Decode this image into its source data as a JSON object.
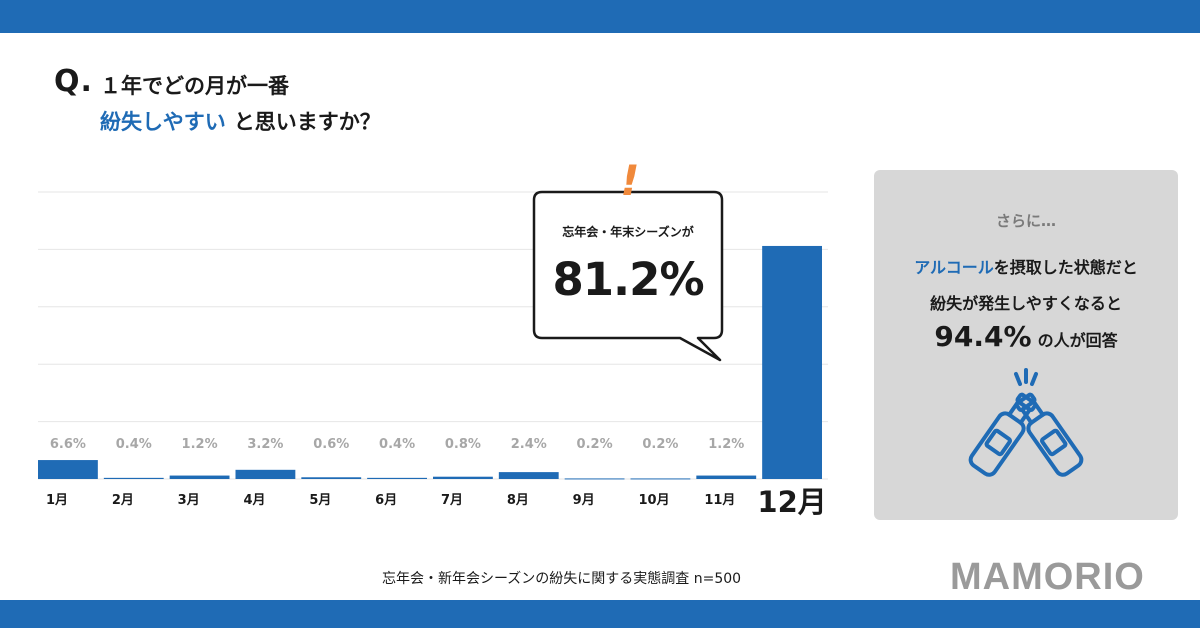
{
  "colors": {
    "brand_blue": "#1f6bb5",
    "bar": "#1f6bb5",
    "label_gray": "#a7a7a7",
    "highlight_orange": "#f0893b",
    "grid": "#e6e6e6",
    "card_bg": "#d7d7d7",
    "brand_gray": "#9a9a9a"
  },
  "question": {
    "mark": "Q.",
    "line1": "１年でどの月が一番",
    "line2_highlight": "紛失しやすい",
    "line2_rest": "と思いますか？"
  },
  "chart_data": {
    "type": "bar",
    "categories": [
      "1月",
      "2月",
      "3月",
      "4月",
      "5月",
      "6月",
      "7月",
      "8月",
      "9月",
      "10月",
      "11月",
      "12月"
    ],
    "values": [
      6.6,
      0.4,
      1.2,
      3.2,
      0.6,
      0.4,
      0.8,
      2.4,
      0.2,
      0.2,
      1.2,
      81.2
    ],
    "value_labels": [
      "6.6%",
      "0.4%",
      "1.2%",
      "3.2%",
      "0.6%",
      "0.4%",
      "0.8%",
      "2.4%",
      "0.2%",
      "0.2%",
      "1.2%",
      ""
    ],
    "ylim": [
      0,
      100
    ],
    "grid": true,
    "highlight_category": "12月"
  },
  "callout": {
    "exclaim": "!",
    "label": "忘年会・年末シーズンが",
    "value": "81.2%"
  },
  "side": {
    "lead": "さらに…",
    "l1_highlight": "アルコール",
    "l1_rest": "を摂取した状態だと",
    "l2": "紛失が発生しやすくなると",
    "l3_value": "94.4%",
    "l3_rest": "の人が回答",
    "icon": "beer-bottles-toast-icon"
  },
  "footnote": "忘年会・新年会シーズンの紛失に関する実態調査 n=500",
  "brand": "MAMORIO"
}
